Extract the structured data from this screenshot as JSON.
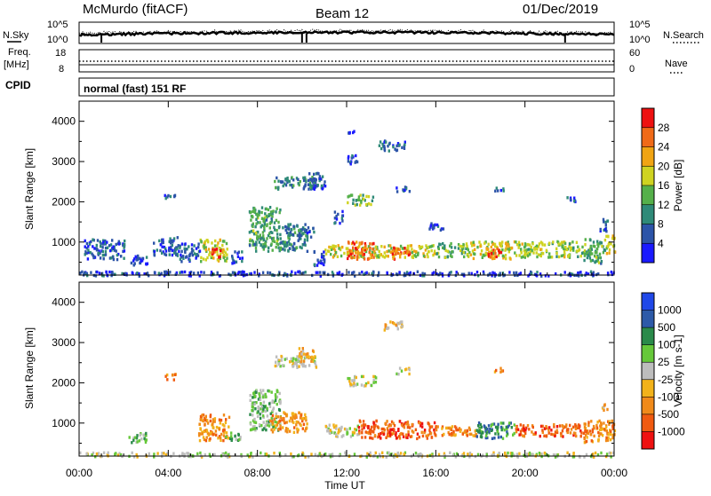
{
  "header": {
    "station": "McMurdo (fitACF)",
    "beam": "Beam 12",
    "date": "01/Dec/2019"
  },
  "strips": {
    "nsky_label": "N.Sky",
    "nsearch_label": "N.Search",
    "noise_ticks": [
      "10^5",
      "10^0"
    ],
    "freq_label": "Freq.",
    "freq_unit": "[MHz]",
    "freq_ticks": [
      "18",
      "8"
    ],
    "nave_label": "Nave",
    "nave_ticks": [
      "60",
      "0"
    ],
    "cpid_label": "CPID",
    "mode_text": "normal (fast) 151 RF"
  },
  "colors": {
    "power": [
      "#1a1aff",
      "#2c54a8",
      "#2f8a78",
      "#55b04a",
      "#cfd321",
      "#f0a413",
      "#f06a18",
      "#ee1111"
    ],
    "velocity": [
      "#2048e8",
      "#2d5aa8",
      "#2a8a4a",
      "#66c83a",
      "#bdbdbd",
      "#f2b21a",
      "#f08a1a",
      "#f05a10",
      "#ee1111"
    ]
  },
  "chart_data": [
    {
      "type": "heatmap",
      "name": "power",
      "ylabel": "Slant Range [km]",
      "xlabel": "Time UT",
      "x_ticks": [
        "00:00",
        "04:00",
        "08:00",
        "12:00",
        "16:00",
        "20:00",
        "00:00"
      ],
      "xlim_hours": [
        0,
        24
      ],
      "ylim_km": [
        180,
        4500
      ],
      "y_ticks": [
        1000,
        2000,
        3000,
        4000
      ],
      "colorbar_label": "Power [dB]",
      "colorbar_ticks": [
        4,
        8,
        12,
        16,
        20,
        24,
        28
      ],
      "colorbar_range": [
        0,
        32
      ],
      "patches": [
        {
          "t0": 0.0,
          "t1": 24.0,
          "r0": 190,
          "r1": 300,
          "v": 5
        },
        {
          "t0": 0.2,
          "t1": 2.0,
          "r0": 600,
          "r1": 1100,
          "v": 6
        },
        {
          "t0": 2.3,
          "t1": 3.2,
          "r0": 450,
          "r1": 700,
          "v": 4
        },
        {
          "t0": 3.3,
          "t1": 4.4,
          "r0": 700,
          "r1": 1150,
          "v": 6
        },
        {
          "t0": 4.4,
          "t1": 5.4,
          "r0": 550,
          "r1": 1000,
          "v": 6
        },
        {
          "t0": 5.4,
          "t1": 6.6,
          "r0": 550,
          "r1": 1100,
          "v": 18
        },
        {
          "t0": 5.8,
          "t1": 6.3,
          "r0": 650,
          "r1": 900,
          "v": 28
        },
        {
          "t0": 7.6,
          "t1": 9.0,
          "r0": 800,
          "r1": 1900,
          "v": 12
        },
        {
          "t0": 9.0,
          "t1": 10.2,
          "r0": 800,
          "r1": 1500,
          "v": 10
        },
        {
          "t0": 8.7,
          "t1": 10.7,
          "r0": 2350,
          "r1": 2650,
          "v": 9
        },
        {
          "t0": 10.2,
          "t1": 11.0,
          "r0": 2350,
          "r1": 2750,
          "v": 6
        },
        {
          "t0": 3.8,
          "t1": 4.3,
          "r0": 2100,
          "r1": 2250,
          "v": 6
        },
        {
          "t0": 9.7,
          "t1": 10.5,
          "r0": 1150,
          "r1": 1400,
          "v": 8
        },
        {
          "t0": 11.0,
          "t1": 16.0,
          "r0": 650,
          "r1": 950,
          "v": 18
        },
        {
          "t0": 12.0,
          "t1": 13.2,
          "r0": 600,
          "r1": 1050,
          "v": 26
        },
        {
          "t0": 14.0,
          "t1": 14.8,
          "r0": 600,
          "r1": 900,
          "v": 26
        },
        {
          "t0": 16.0,
          "t1": 17.5,
          "r0": 650,
          "r1": 1000,
          "v": 14
        },
        {
          "t0": 17.5,
          "t1": 19.5,
          "r0": 600,
          "r1": 1050,
          "v": 18
        },
        {
          "t0": 18.3,
          "t1": 18.9,
          "r0": 650,
          "r1": 900,
          "v": 28
        },
        {
          "t0": 19.5,
          "t1": 22.6,
          "r0": 650,
          "r1": 1050,
          "v": 16
        },
        {
          "t0": 22.6,
          "t1": 23.6,
          "r0": 500,
          "r1": 1100,
          "v": 12
        },
        {
          "t0": 23.6,
          "t1": 24.0,
          "r0": 700,
          "r1": 1200,
          "v": 20
        },
        {
          "t0": 12.0,
          "t1": 13.2,
          "r0": 1950,
          "r1": 2200,
          "v": 14
        },
        {
          "t0": 11.4,
          "t1": 11.8,
          "r0": 1500,
          "r1": 1800,
          "v": 6
        },
        {
          "t0": 14.2,
          "t1": 14.8,
          "r0": 2250,
          "r1": 2400,
          "v": 6
        },
        {
          "t0": 13.4,
          "t1": 14.6,
          "r0": 3300,
          "r1": 3550,
          "v": 6
        },
        {
          "t0": 12.0,
          "t1": 12.5,
          "r0": 2950,
          "r1": 3200,
          "v": 4
        },
        {
          "t0": 12.0,
          "t1": 12.3,
          "r0": 3700,
          "r1": 3800,
          "v": 4
        },
        {
          "t0": 15.6,
          "t1": 16.3,
          "r0": 1300,
          "r1": 1500,
          "v": 6
        },
        {
          "t0": 18.6,
          "t1": 19.0,
          "r0": 2300,
          "r1": 2400,
          "v": 6
        },
        {
          "t0": 21.8,
          "t1": 22.3,
          "r0": 2000,
          "r1": 2150,
          "v": 6
        },
        {
          "t0": 23.3,
          "t1": 23.7,
          "r0": 1300,
          "r1": 1600,
          "v": 6
        },
        {
          "t0": 6.8,
          "t1": 7.3,
          "r0": 500,
          "r1": 800,
          "v": 6
        },
        {
          "t0": 10.5,
          "t1": 11.0,
          "r0": 400,
          "r1": 800,
          "v": 4
        }
      ]
    },
    {
      "type": "heatmap",
      "name": "velocity",
      "ylabel": "Slant Range [km]",
      "xlabel": "Time UT",
      "x_ticks": [
        "00:00",
        "04:00",
        "08:00",
        "12:00",
        "16:00",
        "20:00",
        "00:00"
      ],
      "xlim_hours": [
        0,
        24
      ],
      "ylim_km": [
        180,
        4500
      ],
      "y_ticks": [
        1000,
        2000,
        3000,
        4000
      ],
      "colorbar_label": "Velocity [m s-1]",
      "colorbar_ticks": [
        "1000",
        "500",
        "100",
        "25",
        "-25",
        "-100",
        "-500",
        "-1000"
      ],
      "patches": [
        {
          "t0": 0.0,
          "t1": 24.0,
          "r0": 190,
          "r1": 300,
          "v": 4
        },
        {
          "t0": 2.2,
          "t1": 3.0,
          "r0": 550,
          "r1": 800,
          "v": 3
        },
        {
          "t0": 5.3,
          "t1": 6.7,
          "r0": 600,
          "r1": 1250,
          "v": 6
        },
        {
          "t0": 7.6,
          "t1": 9.0,
          "r0": 850,
          "r1": 1850,
          "v": 3
        },
        {
          "t0": 8.5,
          "t1": 10.2,
          "r0": 800,
          "r1": 1300,
          "v": 6
        },
        {
          "t0": 8.7,
          "t1": 10.6,
          "r0": 2400,
          "r1": 2700,
          "v": 4
        },
        {
          "t0": 9.8,
          "t1": 10.5,
          "r0": 2550,
          "r1": 2900,
          "v": 5
        },
        {
          "t0": 3.8,
          "t1": 4.3,
          "r0": 2100,
          "r1": 2250,
          "v": 6
        },
        {
          "t0": 11.0,
          "t1": 12.5,
          "r0": 700,
          "r1": 1000,
          "v": 4
        },
        {
          "t0": 12.5,
          "t1": 16.0,
          "r0": 650,
          "r1": 1100,
          "v": 7
        },
        {
          "t0": 16.0,
          "t1": 17.8,
          "r0": 700,
          "r1": 950,
          "v": 6
        },
        {
          "t0": 17.8,
          "t1": 19.5,
          "r0": 650,
          "r1": 1050,
          "v": 2
        },
        {
          "t0": 19.5,
          "t1": 22.5,
          "r0": 700,
          "r1": 1000,
          "v": 7
        },
        {
          "t0": 22.5,
          "t1": 24.0,
          "r0": 550,
          "r1": 1100,
          "v": 6
        },
        {
          "t0": 12.0,
          "t1": 13.3,
          "r0": 1950,
          "r1": 2200,
          "v": 4
        },
        {
          "t0": 14.2,
          "t1": 14.8,
          "r0": 2250,
          "r1": 2400,
          "v": 4
        },
        {
          "t0": 13.5,
          "t1": 14.5,
          "r0": 3300,
          "r1": 3550,
          "v": 5
        },
        {
          "t0": 6.5,
          "t1": 7.2,
          "r0": 600,
          "r1": 800,
          "v": 3
        },
        {
          "t0": 18.6,
          "t1": 19.0,
          "r0": 2300,
          "r1": 2400,
          "v": 6
        },
        {
          "t0": 23.4,
          "t1": 23.7,
          "r0": 1300,
          "r1": 1500,
          "v": 5
        }
      ]
    }
  ]
}
